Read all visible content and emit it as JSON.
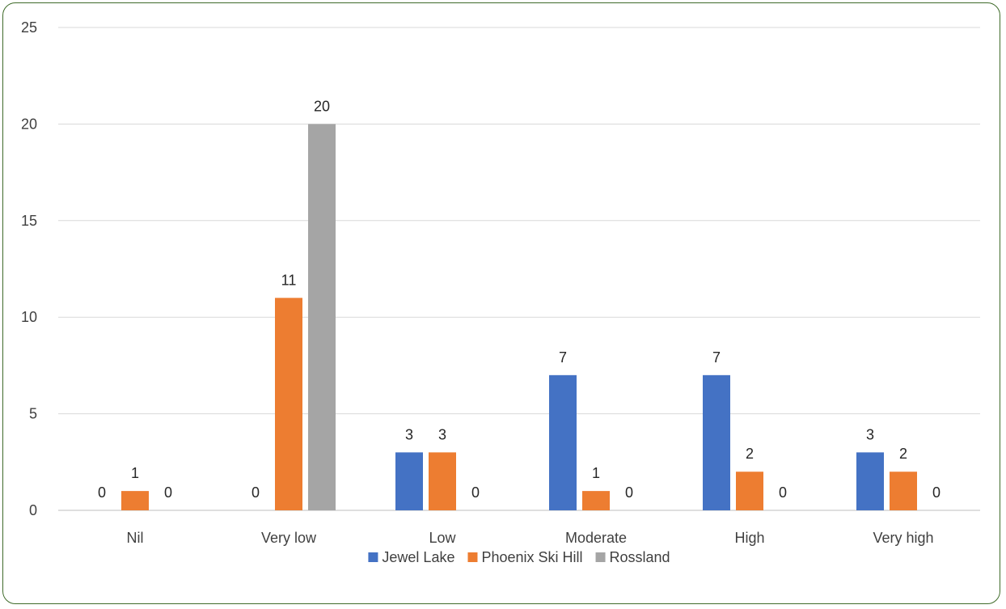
{
  "chart_data": {
    "type": "bar",
    "title": "",
    "xlabel": "",
    "ylabel": "",
    "categories": [
      "Nil",
      "Very low",
      "Low",
      "Moderate",
      "High",
      "Very high"
    ],
    "series": [
      {
        "name": "Jewel Lake",
        "color": "#4472c4",
        "values": [
          0,
          0,
          3,
          7,
          7,
          3
        ]
      },
      {
        "name": "Phoenix Ski Hill",
        "color": "#ed7d31",
        "values": [
          1,
          11,
          3,
          1,
          2,
          2
        ]
      },
      {
        "name": "Rossland",
        "color": "#a5a5a5",
        "values": [
          0,
          20,
          0,
          0,
          0,
          0
        ]
      }
    ],
    "ylim": [
      0,
      25
    ],
    "yticks": [
      0,
      5,
      10,
      15,
      20,
      25
    ],
    "grid": true,
    "legend": "bottom",
    "data_labels": true
  }
}
